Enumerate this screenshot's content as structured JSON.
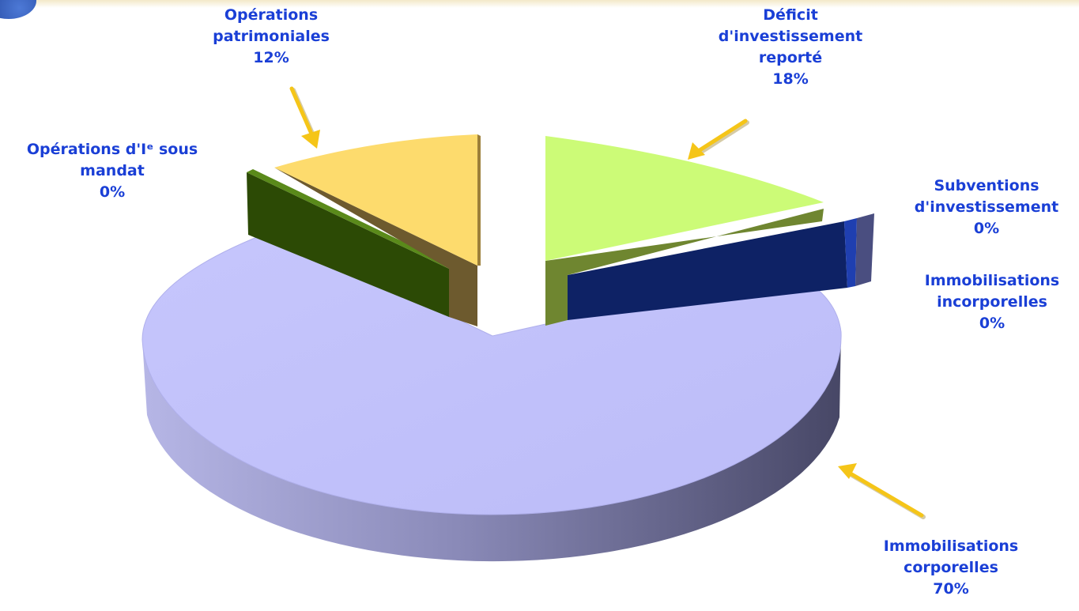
{
  "chart_data": {
    "type": "pie",
    "style": "3d-exploded",
    "title": "",
    "slices": [
      {
        "label_lines": [
          "Immobilisations",
          "corporelles"
        ],
        "value": 70,
        "value_label": "70%",
        "color": "#c0c0fb"
      },
      {
        "label_lines": [
          "Déficit",
          "d'investissement",
          "reporté"
        ],
        "value": 18,
        "value_label": "18%",
        "color": "#ccfb77"
      },
      {
        "label_lines": [
          "Opérations",
          "patrimoniales"
        ],
        "value": 12,
        "value_label": "12%",
        "color": "#fddb6d"
      },
      {
        "label_lines": [
          "Opérations d'Iᵉ sous",
          "mandat"
        ],
        "value": 0,
        "value_label": "0%",
        "color": "#3d6b0e"
      },
      {
        "label_lines": [
          "Subventions",
          "d'investissement"
        ],
        "value": 0,
        "value_label": "0%",
        "color": "#132a7c"
      },
      {
        "label_lines": [
          "Immobilisations",
          "incorporelles"
        ],
        "value": 0,
        "value_label": "0%",
        "color": "#a8a8cc"
      }
    ],
    "label_color": "#1a3fd6",
    "arrow_color": "#f5c518"
  }
}
